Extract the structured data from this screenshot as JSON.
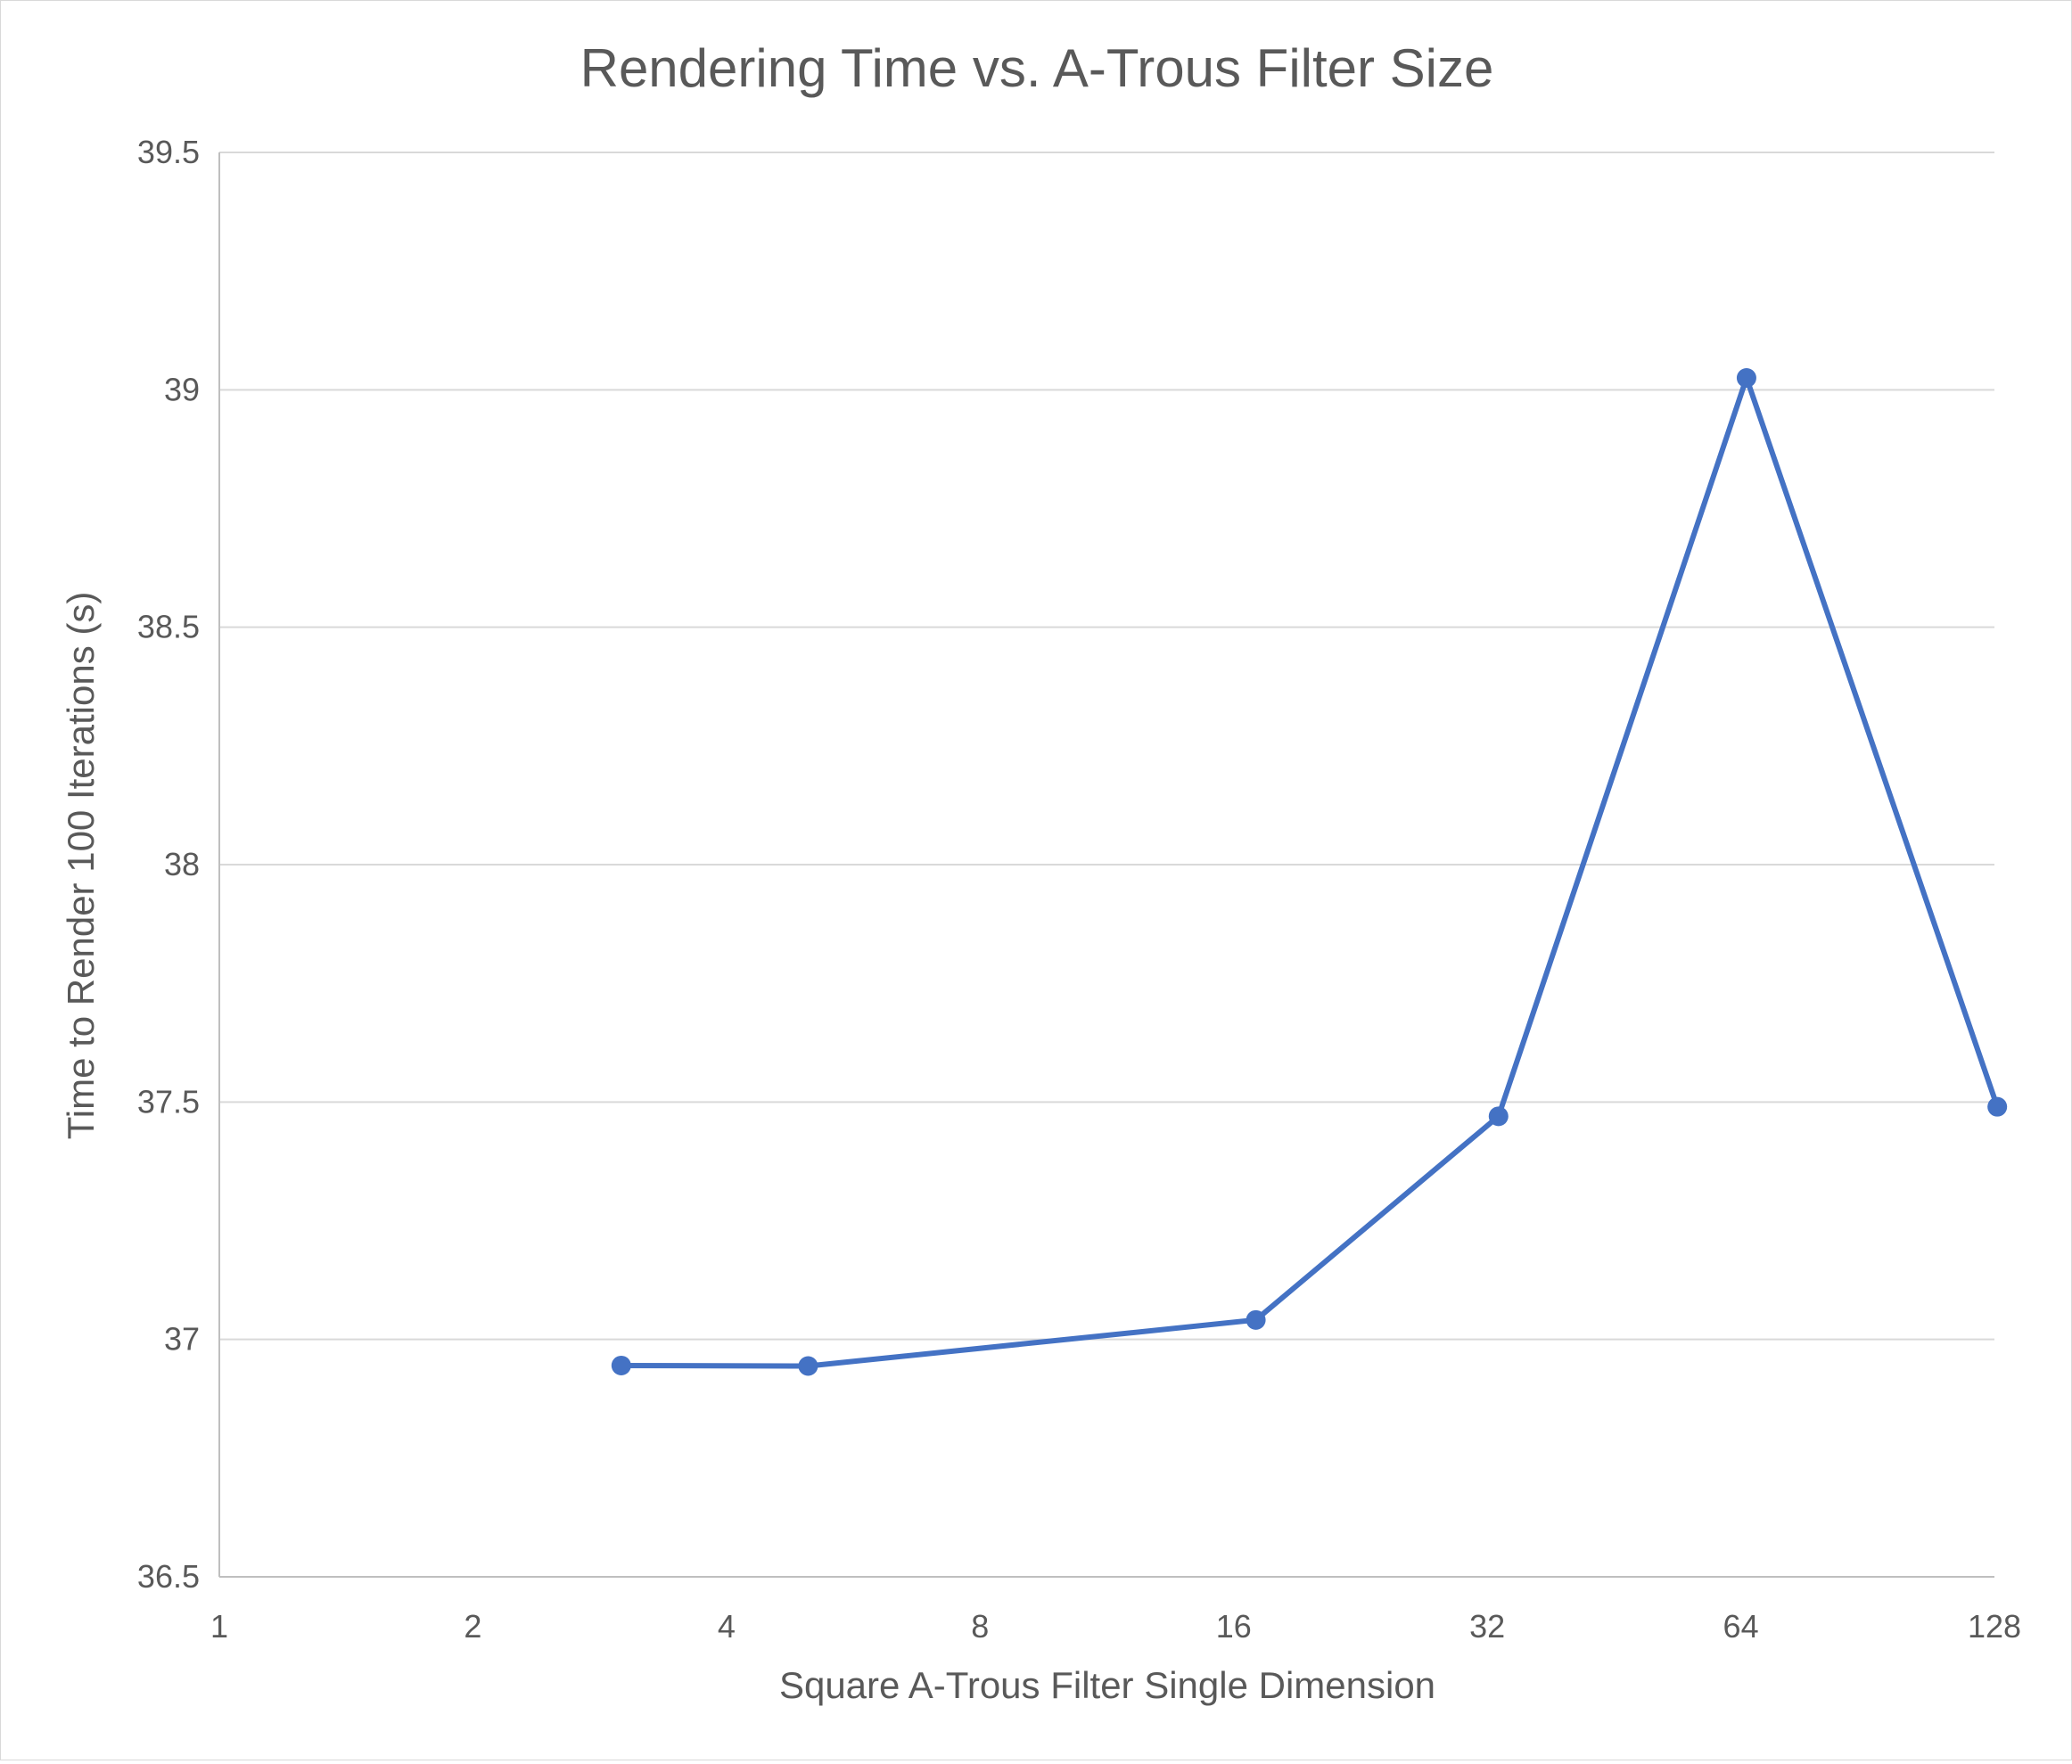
{
  "chart_data": {
    "type": "line",
    "title": "Rendering Time vs. A-Trous Filter Size",
    "xlabel": "Square A-Trous Filter Single Dimension",
    "ylabel": "Time to Render 100 Iterations (s)",
    "x_scale": "log2",
    "x_ticks": [
      "1",
      "2",
      "4",
      "8",
      "16",
      "32",
      "64",
      "128"
    ],
    "y_ticks": [
      "36.5",
      "37",
      "37.5",
      "38",
      "38.5",
      "39",
      "39.5"
    ],
    "ylim": [
      36.5,
      39.5
    ],
    "xlim": [
      1,
      128
    ],
    "grid": "horizontal",
    "series": [
      {
        "color": "#4472c4",
        "x": [
          3,
          5,
          17,
          33,
          65,
          129
        ],
        "y": [
          36.945,
          36.944,
          37.041,
          37.47,
          39.025,
          37.49
        ]
      }
    ]
  }
}
